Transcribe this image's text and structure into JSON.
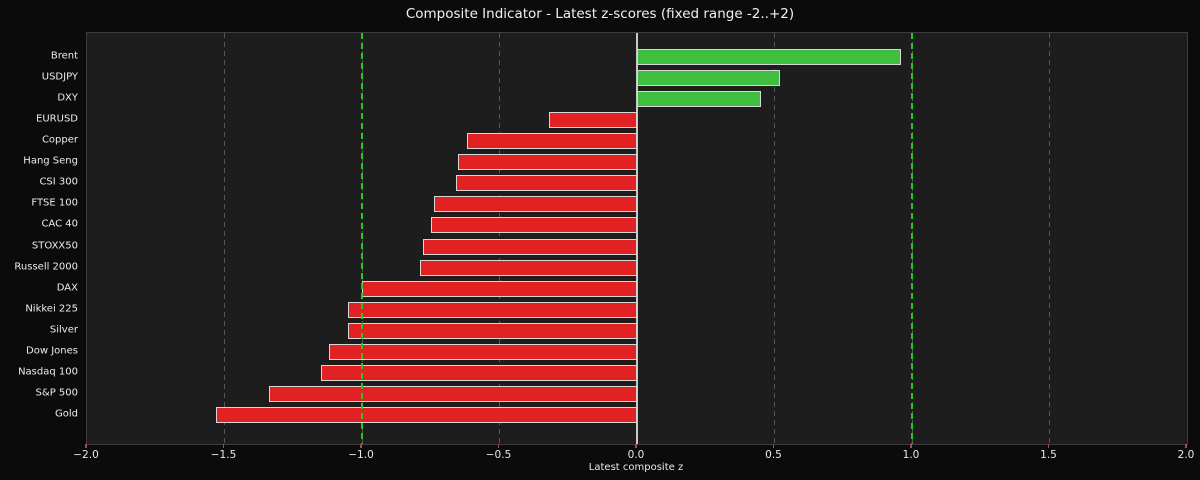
{
  "title": "Composite Indicator - Latest z-scores (fixed range -2..+2)",
  "chart_data": {
    "type": "bar",
    "orientation": "horizontal",
    "title": "Composite Indicator - Latest z-scores (fixed range -2..+2)",
    "xlabel": "Latest composite z",
    "ylabel": "",
    "xlim": [
      -2.0,
      2.0
    ],
    "xticks": [
      -2.0,
      -1.5,
      -1.0,
      -0.5,
      0.0,
      0.5,
      1.0,
      1.5,
      2.0
    ],
    "xtick_labels": [
      "−2.0",
      "−1.5",
      "−1.0",
      "−0.5",
      "0.0",
      "0.5",
      "1.0",
      "1.5",
      "2.0"
    ],
    "categories": [
      "Brent",
      "USDJPY",
      "DXY",
      "EURUSD",
      "Copper",
      "Hang Seng",
      "CSI 300",
      "FTSE 100",
      "CAC 40",
      "STOXX50",
      "Russell 2000",
      "DAX",
      "Nikkei 225",
      "Silver",
      "Dow Jones",
      "Nasdaq 100",
      "S&P 500",
      "Gold"
    ],
    "values": [
      0.96,
      0.52,
      0.45,
      -0.32,
      -0.62,
      -0.65,
      -0.66,
      -0.74,
      -0.75,
      -0.78,
      -0.79,
      -1.0,
      -1.05,
      -1.05,
      -1.12,
      -1.15,
      -1.34,
      -1.53
    ],
    "grid": true,
    "legend": false,
    "reference_lines": [
      {
        "x": -1.0,
        "style": "dashed",
        "color": "#24c724"
      },
      {
        "x": 1.0,
        "style": "dashed",
        "color": "#24c724"
      },
      {
        "x": 0.0,
        "style": "solid",
        "color": "#c9c9c9"
      }
    ],
    "colors": {
      "positive_bar": "#3fbe3f",
      "negative_bar": "#e22222",
      "bar_edge": "#d6d6d6",
      "plot_background": "#1d1d1d",
      "figure_background": "#0b0b0b",
      "grid": "#585858",
      "threshold": "#24c724",
      "zero_line": "#c9c9c9",
      "tick_mark": "#9b4f4f",
      "text": "#ececec"
    }
  }
}
